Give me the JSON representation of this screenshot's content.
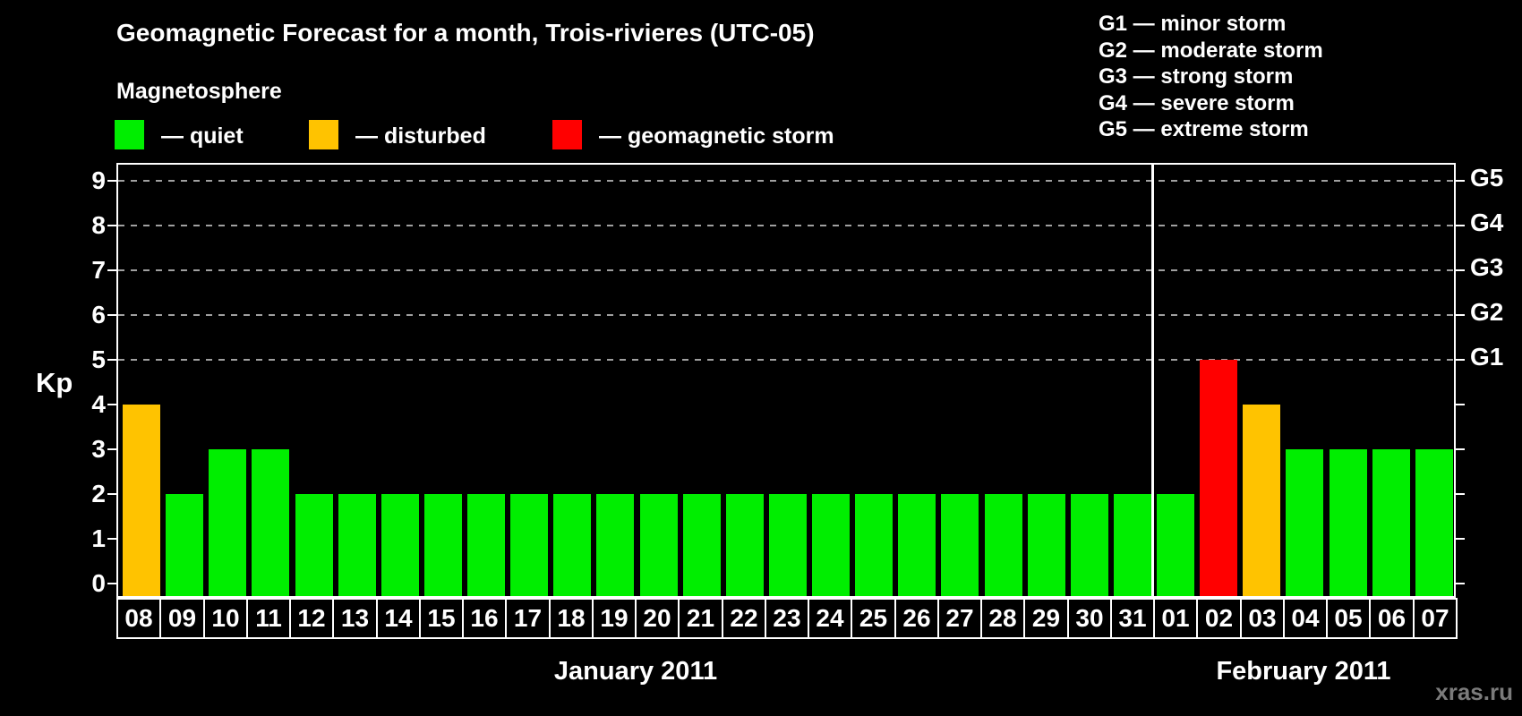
{
  "chart_data": {
    "type": "bar",
    "title": "Geomagnetic Forecast for a month, Trois-rivieres (UTC-05)",
    "ylabel": "Kp",
    "ylim": [
      0,
      9
    ],
    "yticks": [
      0,
      1,
      2,
      3,
      4,
      5,
      6,
      7,
      8,
      9
    ],
    "gridlines_at_kp": [
      5,
      6,
      7,
      8,
      9
    ],
    "grid": "dashed horizontal lines only at Kp 5-9",
    "legend_position": "top-left and top-right",
    "right_axis": [
      {
        "kp": 5,
        "label": "G1"
      },
      {
        "kp": 6,
        "label": "G2"
      },
      {
        "kp": 7,
        "label": "G3"
      },
      {
        "kp": 8,
        "label": "G4"
      },
      {
        "kp": 9,
        "label": "G5"
      }
    ],
    "months": [
      {
        "label": "January 2011",
        "days": [
          {
            "day": "08",
            "kp": 4,
            "status": "disturbed"
          },
          {
            "day": "09",
            "kp": 2,
            "status": "quiet"
          },
          {
            "day": "10",
            "kp": 3,
            "status": "quiet"
          },
          {
            "day": "11",
            "kp": 3,
            "status": "quiet"
          },
          {
            "day": "12",
            "kp": 2,
            "status": "quiet"
          },
          {
            "day": "13",
            "kp": 2,
            "status": "quiet"
          },
          {
            "day": "14",
            "kp": 2,
            "status": "quiet"
          },
          {
            "day": "15",
            "kp": 2,
            "status": "quiet"
          },
          {
            "day": "16",
            "kp": 2,
            "status": "quiet"
          },
          {
            "day": "17",
            "kp": 2,
            "status": "quiet"
          },
          {
            "day": "18",
            "kp": 2,
            "status": "quiet"
          },
          {
            "day": "19",
            "kp": 2,
            "status": "quiet"
          },
          {
            "day": "20",
            "kp": 2,
            "status": "quiet"
          },
          {
            "day": "21",
            "kp": 2,
            "status": "quiet"
          },
          {
            "day": "22",
            "kp": 2,
            "status": "quiet"
          },
          {
            "day": "23",
            "kp": 2,
            "status": "quiet"
          },
          {
            "day": "24",
            "kp": 2,
            "status": "quiet"
          },
          {
            "day": "25",
            "kp": 2,
            "status": "quiet"
          },
          {
            "day": "26",
            "kp": 2,
            "status": "quiet"
          },
          {
            "day": "27",
            "kp": 2,
            "status": "quiet"
          },
          {
            "day": "28",
            "kp": 2,
            "status": "quiet"
          },
          {
            "day": "29",
            "kp": 2,
            "status": "quiet"
          },
          {
            "day": "30",
            "kp": 2,
            "status": "quiet"
          },
          {
            "day": "31",
            "kp": 2,
            "status": "quiet"
          }
        ]
      },
      {
        "label": "February 2011",
        "days": [
          {
            "day": "01",
            "kp": 2,
            "status": "quiet"
          },
          {
            "day": "02",
            "kp": 5,
            "status": "storm"
          },
          {
            "day": "03",
            "kp": 4,
            "status": "disturbed"
          },
          {
            "day": "04",
            "kp": 3,
            "status": "quiet"
          },
          {
            "day": "05",
            "kp": 3,
            "status": "quiet"
          },
          {
            "day": "06",
            "kp": 3,
            "status": "quiet"
          },
          {
            "day": "07",
            "kp": 3,
            "status": "quiet"
          }
        ]
      }
    ]
  },
  "legend": {
    "title": "Magnetosphere",
    "items": [
      {
        "status": "quiet",
        "label": "— quiet"
      },
      {
        "status": "disturbed",
        "label": "— disturbed"
      },
      {
        "status": "storm",
        "label": "— geomagnetic storm"
      }
    ]
  },
  "g_scale_legend": [
    "G1 — minor storm",
    "G2 — moderate storm",
    "G3 — strong storm",
    "G4 — severe storm",
    "G5 — extreme storm"
  ],
  "status_colors": {
    "quiet": "#00ee00",
    "disturbed": "#ffc300",
    "storm": "#ff0000"
  },
  "watermark": "xras.ru"
}
